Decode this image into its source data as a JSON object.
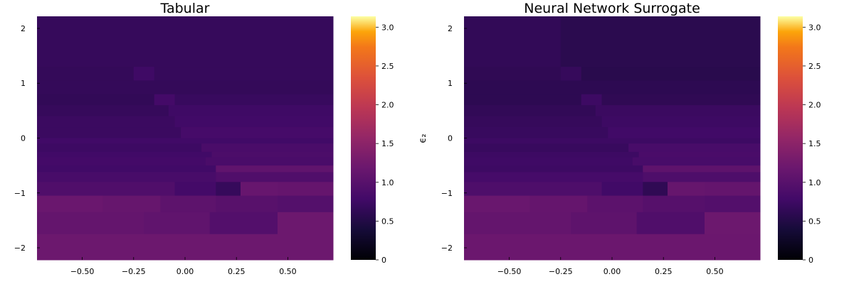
{
  "chart_data": [
    {
      "type": "heatmap",
      "title": "Tabular",
      "xlabel": "",
      "ylabel": "",
      "xlim": [
        -0.72,
        0.72
      ],
      "ylim": [
        -2.22,
        2.22
      ],
      "x_ticks": [
        "−0.50",
        "−0.25",
        "0.00",
        "0.25",
        "0.50"
      ],
      "x_tick_values": [
        -0.5,
        -0.25,
        0.0,
        0.25,
        0.5
      ],
      "y_ticks": [
        "−2",
        "−1",
        "0",
        "1",
        "2"
      ],
      "y_tick_values": [
        -2,
        -1,
        0,
        1,
        2
      ],
      "colorbar": {
        "range": [
          0,
          3.14
        ],
        "ticks": [
          "0",
          "0.5",
          "1.0",
          "1.5",
          "2.0",
          "2.5",
          "3.0"
        ],
        "tick_values": [
          0,
          0.5,
          1.0,
          1.5,
          2.0,
          2.5,
          3.0
        ],
        "colormap": "inferno"
      },
      "rows": [
        {
          "y": [
            1.3,
            2.22
          ],
          "segments": [
            [
              -0.72,
              0.72,
              0.68
            ]
          ]
        },
        {
          "y": [
            1.05,
            1.3
          ],
          "segments": [
            [
              -0.72,
              -0.25,
              0.66
            ],
            [
              -0.25,
              -0.15,
              0.76
            ],
            [
              -0.15,
              0.72,
              0.68
            ]
          ]
        },
        {
          "y": [
            0.8,
            1.05
          ],
          "segments": [
            [
              -0.72,
              0.72,
              0.66
            ]
          ]
        },
        {
          "y": [
            0.6,
            0.8
          ],
          "segments": [
            [
              -0.72,
              -0.15,
              0.64
            ],
            [
              -0.15,
              -0.05,
              0.8
            ],
            [
              -0.05,
              0.72,
              0.7
            ]
          ]
        },
        {
          "y": [
            0.4,
            0.6
          ],
          "segments": [
            [
              -0.72,
              -0.08,
              0.68
            ],
            [
              -0.08,
              0.72,
              0.76
            ]
          ]
        },
        {
          "y": [
            0.2,
            0.4
          ],
          "segments": [
            [
              -0.72,
              -0.05,
              0.72
            ],
            [
              -0.05,
              0.72,
              0.78
            ]
          ]
        },
        {
          "y": [
            0.0,
            0.2
          ],
          "segments": [
            [
              -0.72,
              -0.02,
              0.72
            ],
            [
              -0.02,
              0.72,
              0.82
            ]
          ]
        },
        {
          "y": [
            -0.1,
            0.0
          ],
          "segments": [
            [
              -0.72,
              0.72,
              0.78
            ]
          ]
        },
        {
          "y": [
            -0.25,
            -0.1
          ],
          "segments": [
            [
              -0.72,
              0.08,
              0.74
            ],
            [
              0.08,
              0.72,
              0.86
            ]
          ]
        },
        {
          "y": [
            -0.35,
            -0.25
          ],
          "segments": [
            [
              -0.72,
              0.13,
              0.78
            ],
            [
              0.13,
              0.72,
              0.88
            ]
          ]
        },
        {
          "y": [
            -0.5,
            -0.35
          ],
          "segments": [
            [
              -0.72,
              0.1,
              0.8
            ],
            [
              0.1,
              0.72,
              0.86
            ]
          ]
        },
        {
          "y": [
            -0.62,
            -0.5
          ],
          "segments": [
            [
              -0.72,
              0.15,
              0.78
            ],
            [
              0.15,
              0.72,
              1.08
            ]
          ]
        },
        {
          "y": [
            -0.8,
            -0.62
          ],
          "segments": [
            [
              -0.72,
              0.15,
              0.84
            ],
            [
              0.15,
              0.72,
              0.92
            ]
          ]
        },
        {
          "y": [
            -1.05,
            -0.8
          ],
          "segments": [
            [
              -0.72,
              -0.05,
              0.92
            ],
            [
              -0.05,
              0.15,
              0.8
            ],
            [
              0.15,
              0.27,
              0.68
            ],
            [
              0.27,
              0.45,
              1.15
            ],
            [
              0.45,
              0.72,
              1.13
            ]
          ]
        },
        {
          "y": [
            -1.35,
            -1.05
          ],
          "segments": [
            [
              -0.72,
              -0.4,
              1.18
            ],
            [
              -0.4,
              -0.12,
              1.14
            ],
            [
              -0.12,
              0.15,
              1.05
            ],
            [
              0.15,
              0.45,
              1.0
            ],
            [
              0.45,
              0.72,
              0.96
            ]
          ]
        },
        {
          "y": [
            -1.75,
            -1.35
          ],
          "segments": [
            [
              -0.72,
              -0.2,
              1.12
            ],
            [
              -0.2,
              0.12,
              1.08
            ],
            [
              0.12,
              0.45,
              0.95
            ],
            [
              0.45,
              0.72,
              1.2
            ]
          ]
        },
        {
          "y": [
            -2.22,
            -1.75
          ],
          "segments": [
            [
              -0.72,
              0.72,
              1.2
            ]
          ]
        }
      ]
    },
    {
      "type": "heatmap",
      "title": "Neural Network Surrogate",
      "xlabel": "",
      "ylabel": "ϵ₂",
      "xlim": [
        -0.72,
        0.72
      ],
      "ylim": [
        -2.22,
        2.22
      ],
      "x_ticks": [
        "−0.50",
        "−0.25",
        "0.00",
        "0.25",
        "0.50"
      ],
      "x_tick_values": [
        -0.5,
        -0.25,
        0.0,
        0.25,
        0.5
      ],
      "y_ticks": [
        "−2",
        "−1",
        "0",
        "1",
        "2"
      ],
      "y_tick_values": [
        -2,
        -1,
        0,
        1,
        2
      ],
      "colorbar": {
        "range": [
          0,
          3.14
        ],
        "ticks": [
          "0",
          "0.5",
          "1.0",
          "1.5",
          "2.0",
          "2.5",
          "3.0"
        ],
        "tick_values": [
          0,
          0.5,
          1.0,
          1.5,
          2.0,
          2.5,
          3.0
        ],
        "colormap": "inferno"
      },
      "rows": [
        {
          "y": [
            1.3,
            2.22
          ],
          "segments": [
            [
              -0.72,
              -0.25,
              0.64
            ],
            [
              -0.25,
              0.72,
              0.58
            ]
          ]
        },
        {
          "y": [
            1.05,
            1.3
          ],
          "segments": [
            [
              -0.72,
              -0.25,
              0.62
            ],
            [
              -0.25,
              -0.15,
              0.68
            ],
            [
              -0.15,
              0.72,
              0.56
            ]
          ]
        },
        {
          "y": [
            0.8,
            1.05
          ],
          "segments": [
            [
              -0.72,
              0.72,
              0.6
            ]
          ]
        },
        {
          "y": [
            0.6,
            0.8
          ],
          "segments": [
            [
              -0.72,
              -0.15,
              0.6
            ],
            [
              -0.15,
              -0.05,
              0.74
            ],
            [
              -0.05,
              0.72,
              0.62
            ]
          ]
        },
        {
          "y": [
            0.4,
            0.6
          ],
          "segments": [
            [
              -0.72,
              -0.08,
              0.64
            ],
            [
              -0.08,
              0.72,
              0.72
            ]
          ]
        },
        {
          "y": [
            0.2,
            0.4
          ],
          "segments": [
            [
              -0.72,
              -0.05,
              0.68
            ],
            [
              -0.05,
              0.72,
              0.74
            ]
          ]
        },
        {
          "y": [
            0.0,
            0.2
          ],
          "segments": [
            [
              -0.72,
              -0.02,
              0.7
            ],
            [
              -0.02,
              0.72,
              0.78
            ]
          ]
        },
        {
          "y": [
            -0.1,
            0.0
          ],
          "segments": [
            [
              -0.72,
              0.72,
              0.74
            ]
          ]
        },
        {
          "y": [
            -0.25,
            -0.1
          ],
          "segments": [
            [
              -0.72,
              0.08,
              0.7
            ],
            [
              0.08,
              0.72,
              0.84
            ]
          ]
        },
        {
          "y": [
            -0.35,
            -0.25
          ],
          "segments": [
            [
              -0.72,
              0.13,
              0.74
            ],
            [
              0.13,
              0.72,
              0.86
            ]
          ]
        },
        {
          "y": [
            -0.5,
            -0.35
          ],
          "segments": [
            [
              -0.72,
              0.1,
              0.76
            ],
            [
              0.1,
              0.72,
              0.84
            ]
          ]
        },
        {
          "y": [
            -0.62,
            -0.5
          ],
          "segments": [
            [
              -0.72,
              0.15,
              0.74
            ],
            [
              0.15,
              0.72,
              1.06
            ]
          ]
        },
        {
          "y": [
            -0.8,
            -0.62
          ],
          "segments": [
            [
              -0.72,
              0.15,
              0.82
            ],
            [
              0.15,
              0.72,
              0.9
            ]
          ]
        },
        {
          "y": [
            -1.05,
            -0.8
          ],
          "segments": [
            [
              -0.72,
              -0.05,
              0.9
            ],
            [
              -0.05,
              0.15,
              0.78
            ],
            [
              0.15,
              0.27,
              0.62
            ],
            [
              0.27,
              0.45,
              1.14
            ],
            [
              0.45,
              0.72,
              1.12
            ]
          ]
        },
        {
          "y": [
            -1.35,
            -1.05
          ],
          "segments": [
            [
              -0.72,
              -0.4,
              1.17
            ],
            [
              -0.4,
              -0.12,
              1.13
            ],
            [
              -0.12,
              0.15,
              1.04
            ],
            [
              0.15,
              0.45,
              0.98
            ],
            [
              0.45,
              0.72,
              0.95
            ]
          ]
        },
        {
          "y": [
            -1.75,
            -1.35
          ],
          "segments": [
            [
              -0.72,
              -0.2,
              1.12
            ],
            [
              -0.2,
              0.12,
              1.06
            ],
            [
              0.12,
              0.45,
              0.92
            ],
            [
              0.45,
              0.72,
              1.2
            ]
          ]
        },
        {
          "y": [
            -2.22,
            -1.75
          ],
          "segments": [
            [
              -0.72,
              0.72,
              1.19
            ]
          ]
        }
      ]
    }
  ]
}
